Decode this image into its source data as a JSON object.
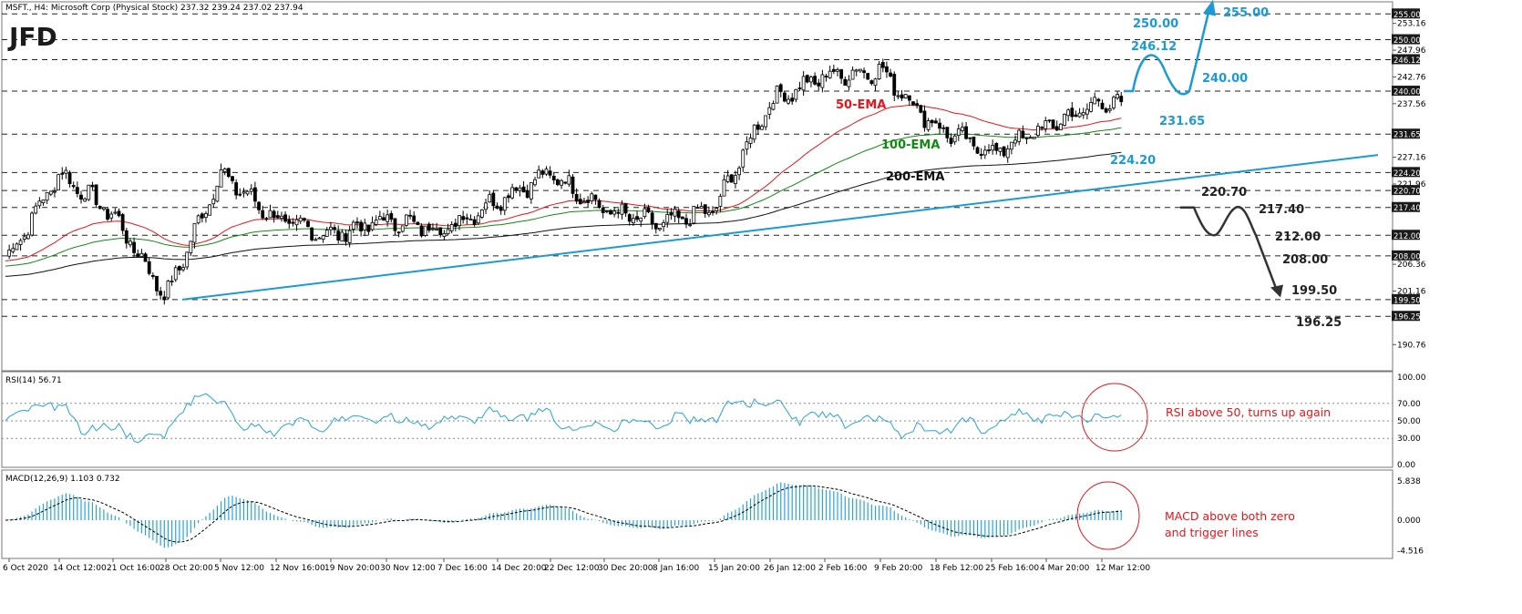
{
  "header": "MSFT., H4:  Microsoft Corp (Physical Stock)  237.32 239.24 237.02 237.94",
  "logo": "JFD",
  "colors": {
    "ema50": "#e8141b",
    "ema100": "#118a11",
    "ema200": "#111111",
    "trendline": "#1b9ad6",
    "bullish_path": "#1b9ad6",
    "bearish_path": "#333333",
    "indicator": "#29a3d8",
    "note": "#e8141b"
  },
  "price_axis_ticks": [
    "255.00",
    "253.16",
    "250.00",
    "247.96",
    "246.12",
    "242.76",
    "240.00",
    "237.56",
    "231.65",
    "227.16",
    "224.20",
    "221.96",
    "220.70",
    "217.40",
    "212.00",
    "208.00",
    "206.36",
    "201.16",
    "199.50",
    "196.25",
    "190.76"
  ],
  "highlighted_ticks": [
    "255.00",
    "250.00",
    "246.12",
    "240.00",
    "231.65",
    "224.20",
    "220.70",
    "217.40",
    "212.00",
    "208.00",
    "199.50",
    "196.25"
  ],
  "level_labels": [
    {
      "text": "255.00",
      "color": "#1b9ad6"
    },
    {
      "text": "250.00",
      "color": "#1b9ad6"
    },
    {
      "text": "246.12",
      "color": "#1b9ad6"
    },
    {
      "text": "240.00",
      "color": "#1b9ad6"
    },
    {
      "text": "231.65",
      "color": "#1b9ad6"
    },
    {
      "text": "224.20",
      "color": "#1b9ad6"
    },
    {
      "text": "220.70",
      "color": "#222222"
    },
    {
      "text": "217.40",
      "color": "#222222"
    },
    {
      "text": "212.00",
      "color": "#222222"
    },
    {
      "text": "208.00",
      "color": "#222222"
    },
    {
      "text": "199.50",
      "color": "#222222"
    },
    {
      "text": "196.25",
      "color": "#222222"
    }
  ],
  "ema_labels": {
    "ema50": "50-EMA",
    "ema100": "100-EMA",
    "ema200": "200-EMA"
  },
  "rsi": {
    "header": "RSI(14) 56.71",
    "ticks": [
      "100.00",
      "70.00",
      "50.00",
      "30.00",
      "0.00"
    ],
    "note": "RSI above 50, turns up again"
  },
  "macd": {
    "header": "MACD(12,26,9) 1.103 0.732",
    "ticks": [
      "5.838",
      "0.000",
      "-4.516"
    ],
    "note_line1": "MACD above both zero",
    "note_line2": "and trigger lines"
  },
  "time_labels": [
    "6 Oct 2020",
    "14 Oct 12:00",
    "21 Oct 16:00",
    "28 Oct 20:00",
    "5 Nov 12:00",
    "12 Nov 16:00",
    "19 Nov 20:00",
    "30 Nov 12:00",
    "7 Dec 16:00",
    "14 Dec 20:00",
    "22 Dec 12:00",
    "30 Dec 20:00",
    "8 Jan 16:00",
    "15 Jan 20:00",
    "26 Jan 12:00",
    "2 Feb 16:00",
    "9 Feb 20:00",
    "18 Feb 12:00",
    "25 Feb 16:00",
    "4 Mar 20:00",
    "12 Mar 12:00"
  ],
  "chart_data": {
    "type": "candlestick",
    "symbol": "MSFT.",
    "timeframe": "H4",
    "ylim": [
      187,
      257
    ],
    "price_path": [
      {
        "x": "6 Oct 2020",
        "y": 208
      },
      {
        "x": "14 Oct 12:00",
        "y": 224
      },
      {
        "x": "21 Oct 16:00",
        "y": 216
      },
      {
        "x": "28 Oct 20:00",
        "y": 200
      },
      {
        "x": "5 Nov 12:00",
        "y": 224
      },
      {
        "x": "12 Nov 16:00",
        "y": 215
      },
      {
        "x": "19 Nov 20:00",
        "y": 212
      },
      {
        "x": "30 Nov 12:00",
        "y": 215
      },
      {
        "x": "7 Dec 16:00",
        "y": 213
      },
      {
        "x": "14 Dec 20:00",
        "y": 219
      },
      {
        "x": "22 Dec 12:00",
        "y": 224
      },
      {
        "x": "30 Dec 20:00",
        "y": 217
      },
      {
        "x": "8 Jan 16:00",
        "y": 214
      },
      {
        "x": "15 Jan 20:00",
        "y": 217
      },
      {
        "x": "26 Jan 12:00",
        "y": 238
      },
      {
        "x": "2 Feb 16:00",
        "y": 243
      },
      {
        "x": "9 Feb 20:00",
        "y": 244
      },
      {
        "x": "18 Feb 12:00",
        "y": 233
      },
      {
        "x": "25 Feb 16:00",
        "y": 228
      },
      {
        "x": "4 Mar 20:00",
        "y": 233
      },
      {
        "x": "12 Mar 12:00",
        "y": 237.94
      }
    ],
    "last_bar": {
      "open": 237.32,
      "high": 239.24,
      "low": 237.02,
      "close": 237.94
    },
    "horizontal_levels": [
      255.0,
      250.0,
      246.12,
      240.0,
      231.65,
      224.2,
      220.7,
      217.4,
      212.0,
      208.0,
      199.5,
      196.25
    ],
    "rsi_last": 56.71,
    "macd_last": 1.103,
    "macd_signal_last": 0.732
  }
}
